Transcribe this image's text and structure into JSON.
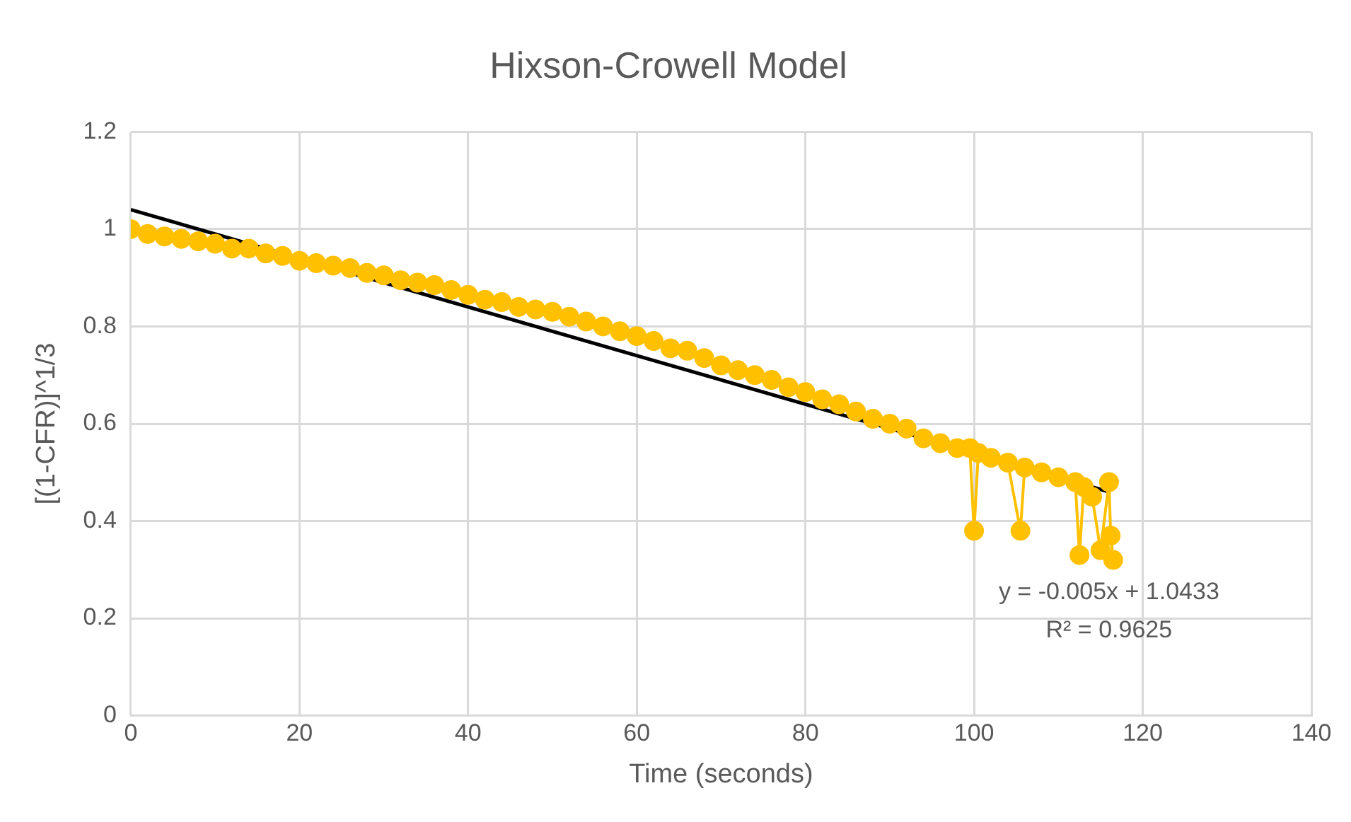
{
  "chart_data": {
    "type": "line",
    "title": "Hixson-Crowell Model",
    "xlabel": "Time (seconds)",
    "ylabel": "[(1-CFR)]^1/3",
    "xlim": [
      0,
      140
    ],
    "xticks": [
      0,
      20,
      40,
      60,
      80,
      100,
      120,
      140
    ],
    "ylim": [
      0,
      1.2
    ],
    "yticks": [
      0,
      0.2,
      0.4,
      0.6,
      0.8,
      1,
      1.2
    ],
    "grid": true,
    "legend": false,
    "annotations": [
      "y = -0.005x + 1.0433",
      "R² = 0.9625"
    ],
    "series": [
      {
        "marker": "circle",
        "color": "#ffc000",
        "x": [
          0,
          2,
          4,
          6,
          8,
          10,
          12,
          14,
          16,
          18,
          20,
          22,
          24,
          26,
          28,
          30,
          32,
          34,
          36,
          38,
          40,
          42,
          44,
          46,
          48,
          50,
          52,
          54,
          56,
          58,
          60,
          62,
          64,
          66,
          68,
          70,
          72,
          74,
          76,
          78,
          80,
          82,
          84,
          86,
          88,
          90,
          92,
          94,
          96,
          98,
          99.5,
          100,
          100.5,
          102,
          104,
          105.5,
          106,
          108,
          110,
          112,
          112.5,
          113,
          114,
          115,
          116,
          116.2,
          116.5
        ],
        "values": [
          1.0,
          0.99,
          0.985,
          0.98,
          0.975,
          0.97,
          0.96,
          0.96,
          0.95,
          0.945,
          0.935,
          0.93,
          0.925,
          0.92,
          0.91,
          0.905,
          0.895,
          0.89,
          0.885,
          0.875,
          0.865,
          0.855,
          0.85,
          0.84,
          0.835,
          0.83,
          0.82,
          0.81,
          0.8,
          0.79,
          0.78,
          0.77,
          0.755,
          0.75,
          0.735,
          0.72,
          0.71,
          0.7,
          0.69,
          0.675,
          0.665,
          0.65,
          0.64,
          0.625,
          0.61,
          0.6,
          0.59,
          0.57,
          0.56,
          0.55,
          0.55,
          0.38,
          0.54,
          0.53,
          0.52,
          0.38,
          0.51,
          0.5,
          0.49,
          0.48,
          0.33,
          0.47,
          0.45,
          0.34,
          0.48,
          0.37,
          0.32
        ]
      },
      {
        "marker": "none",
        "color": "#000000",
        "x": [
          0,
          116
        ],
        "values": [
          1.04,
          0.46
        ]
      }
    ]
  }
}
